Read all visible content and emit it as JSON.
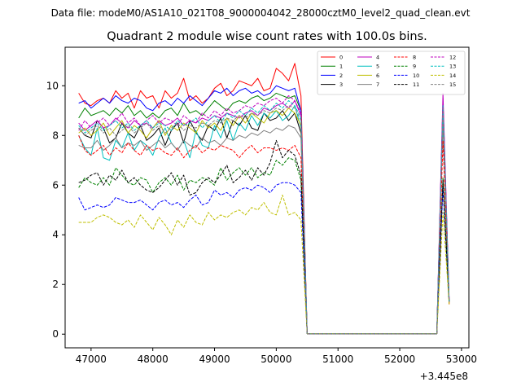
{
  "chart_data": {
    "type": "line",
    "suptitle": "Data file: modeM0/AS1A10_021T08_9000004042_28000cztM0_level2_quad_clean.evt",
    "title": "Quadrant 2 module wise count rates with 100.0s bins.",
    "xlabel": "",
    "ylabel": "",
    "x_offset_label": "+3.445e8",
    "xlim": [
      46580,
      53120
    ],
    "ylim": [
      -0.55,
      11.55
    ],
    "x_ticks": [
      47000,
      48000,
      49000,
      50000,
      51000,
      52000,
      53000
    ],
    "y_ticks": [
      0,
      2,
      4,
      6,
      8,
      10
    ],
    "x": [
      46800,
      46900,
      47000,
      47100,
      47200,
      47300,
      47400,
      47500,
      47600,
      47700,
      47800,
      47900,
      48000,
      48100,
      48200,
      48300,
      48400,
      48500,
      48600,
      48700,
      48800,
      48900,
      49000,
      49100,
      49200,
      49300,
      49400,
      49500,
      49600,
      49700,
      49800,
      49900,
      50000,
      50100,
      50200,
      50300,
      50400,
      50500,
      52600,
      52700,
      52800
    ],
    "series": [
      {
        "name": "0",
        "color": "#ff0000",
        "dash": "solid",
        "values": [
          9.7,
          9.3,
          9.2,
          9.4,
          9.5,
          9.3,
          9.8,
          9.5,
          9.7,
          9.1,
          9.8,
          9.5,
          9.6,
          9.1,
          9.8,
          9.5,
          9.7,
          10.3,
          9.4,
          9.6,
          9.3,
          9.5,
          9.9,
          10.1,
          9.6,
          9.8,
          10.2,
          10.1,
          10.0,
          10.3,
          9.8,
          9.9,
          10.7,
          10.5,
          10.2,
          10.9,
          9.6,
          0.02,
          0.02,
          9.3,
          1.2
        ]
      },
      {
        "name": "1",
        "color": "#008000",
        "dash": "solid",
        "values": [
          8.7,
          9.1,
          8.8,
          8.9,
          9.0,
          8.8,
          9.1,
          8.9,
          9.2,
          8.8,
          9.0,
          8.7,
          8.9,
          8.7,
          9.0,
          9.1,
          8.8,
          9.3,
          8.9,
          9.0,
          8.8,
          9.1,
          9.4,
          9.2,
          9.0,
          9.3,
          9.4,
          9.3,
          9.5,
          9.6,
          9.4,
          9.5,
          9.7,
          9.6,
          9.5,
          9.6,
          9.0,
          0.02,
          0.02,
          9.0,
          1.3
        ]
      },
      {
        "name": "2",
        "color": "#0000ff",
        "dash": "solid",
        "values": [
          9.3,
          9.4,
          9.1,
          9.3,
          9.5,
          9.3,
          9.6,
          9.4,
          9.3,
          9.5,
          9.4,
          9.1,
          9.0,
          9.3,
          9.4,
          9.2,
          9.5,
          9.3,
          9.6,
          9.4,
          9.2,
          9.5,
          9.8,
          9.7,
          9.9,
          9.6,
          9.8,
          9.9,
          9.7,
          9.8,
          9.6,
          9.7,
          10.0,
          9.9,
          9.8,
          9.9,
          9.0,
          0.02,
          0.02,
          9.4,
          1.3
        ]
      },
      {
        "name": "3",
        "color": "#000000",
        "dash": "solid",
        "values": [
          8.3,
          8.0,
          7.9,
          8.6,
          8.3,
          7.7,
          7.9,
          8.5,
          8.1,
          7.9,
          8.4,
          7.8,
          8.0,
          8.3,
          7.6,
          8.2,
          8.5,
          7.7,
          8.6,
          8.1,
          7.8,
          8.4,
          8.2,
          8.7,
          7.9,
          8.6,
          8.4,
          8.8,
          8.3,
          8.2,
          8.9,
          8.6,
          8.7,
          9.0,
          8.6,
          8.9,
          8.1,
          0.02,
          0.02,
          8.6,
          1.3
        ]
      },
      {
        "name": "4",
        "color": "#bf00bf",
        "dash": "solid",
        "values": [
          8.5,
          8.2,
          8.4,
          8.6,
          8.3,
          8.4,
          8.7,
          8.5,
          8.3,
          8.6,
          8.4,
          8.5,
          8.3,
          8.6,
          8.4,
          8.5,
          8.7,
          8.4,
          8.6,
          8.5,
          8.7,
          8.6,
          8.8,
          8.7,
          8.9,
          8.8,
          8.7,
          8.9,
          9.0,
          8.8,
          9.1,
          9.0,
          9.2,
          9.3,
          9.1,
          9.4,
          8.8,
          0.02,
          0.02,
          9.7,
          1.4
        ]
      },
      {
        "name": "5",
        "color": "#00bfbf",
        "dash": "solid",
        "values": [
          8.0,
          7.5,
          7.2,
          8.3,
          7.1,
          7.0,
          7.8,
          7.5,
          8.1,
          7.4,
          7.8,
          7.6,
          7.2,
          7.9,
          8.3,
          7.7,
          7.4,
          7.8,
          7.1,
          8.2,
          7.6,
          7.5,
          8.4,
          7.9,
          8.6,
          7.8,
          8.5,
          8.2,
          8.8,
          8.4,
          8.9,
          8.7,
          9.0,
          8.6,
          8.8,
          9.2,
          8.3,
          0.02,
          0.02,
          8.8,
          1.3
        ]
      },
      {
        "name": "6",
        "color": "#bfbf00",
        "dash": "solid",
        "values": [
          8.1,
          8.3,
          8.0,
          8.2,
          8.5,
          8.0,
          8.3,
          8.6,
          8.1,
          8.4,
          8.2,
          7.9,
          8.3,
          8.6,
          8.0,
          8.4,
          8.2,
          8.5,
          8.3,
          8.1,
          8.6,
          8.3,
          8.5,
          8.2,
          8.7,
          8.4,
          8.8,
          8.5,
          8.9,
          8.7,
          8.5,
          8.9,
          9.0,
          8.8,
          9.1,
          8.9,
          8.4,
          0.02,
          0.02,
          8.7,
          1.3
        ]
      },
      {
        "name": "7",
        "color": "#808080",
        "dash": "solid",
        "values": [
          7.6,
          7.5,
          7.5,
          7.8,
          7.4,
          7.6,
          7.9,
          7.5,
          7.7,
          7.6,
          7.8,
          7.4,
          7.6,
          7.8,
          7.5,
          7.7,
          7.4,
          7.8,
          7.6,
          7.5,
          7.9,
          7.7,
          7.8,
          7.6,
          7.9,
          7.8,
          8.0,
          7.9,
          8.1,
          8.0,
          8.2,
          8.1,
          8.3,
          8.2,
          8.4,
          8.3,
          7.9,
          0.02,
          0.02,
          8.5,
          1.3
        ]
      },
      {
        "name": "8",
        "color": "#ff0000",
        "dash": "dashed",
        "values": [
          8.0,
          7.4,
          7.2,
          7.4,
          7.6,
          7.2,
          7.5,
          7.3,
          7.7,
          7.4,
          7.2,
          7.6,
          7.4,
          7.5,
          7.3,
          7.2,
          7.5,
          7.1,
          7.4,
          7.6,
          7.3,
          7.5,
          7.4,
          7.6,
          7.5,
          7.4,
          7.1,
          7.4,
          7.6,
          7.3,
          7.5,
          7.5,
          7.4,
          7.5,
          7.4,
          7.6,
          7.1,
          0.02,
          0.02,
          7.8,
          1.2
        ]
      },
      {
        "name": "9",
        "color": "#008000",
        "dash": "dashed",
        "values": [
          5.9,
          6.3,
          6.1,
          6.0,
          6.3,
          6.0,
          6.7,
          6.4,
          6.1,
          6.0,
          6.3,
          6.2,
          5.7,
          6.1,
          6.3,
          6.0,
          6.4,
          5.8,
          6.2,
          6.1,
          6.3,
          6.2,
          6.0,
          6.7,
          6.2,
          6.5,
          6.7,
          6.4,
          6.7,
          6.3,
          6.5,
          6.4,
          7.0,
          6.8,
          7.1,
          7.0,
          6.2,
          0.02,
          0.02,
          6.3,
          1.3
        ]
      },
      {
        "name": "10",
        "color": "#0000ff",
        "dash": "dashed",
        "values": [
          5.5,
          5.0,
          5.1,
          5.2,
          5.1,
          5.2,
          5.5,
          5.4,
          5.3,
          5.3,
          5.4,
          5.2,
          5.0,
          5.3,
          5.4,
          5.2,
          5.3,
          5.1,
          5.4,
          5.6,
          5.2,
          5.3,
          5.8,
          5.6,
          5.7,
          5.5,
          5.8,
          5.9,
          5.8,
          6.0,
          5.9,
          5.7,
          6.0,
          6.1,
          6.1,
          6.0,
          5.7,
          0.02,
          0.02,
          5.9,
          1.3
        ]
      },
      {
        "name": "11",
        "color": "#000000",
        "dash": "dashed",
        "values": [
          6.1,
          6.2,
          6.4,
          6.5,
          6.0,
          6.4,
          6.2,
          6.6,
          6.1,
          6.3,
          6.0,
          5.8,
          5.7,
          5.9,
          6.2,
          6.5,
          6.0,
          6.4,
          5.6,
          5.7,
          6.1,
          6.3,
          6.1,
          6.4,
          6.8,
          6.1,
          6.3,
          6.6,
          6.2,
          6.7,
          6.4,
          6.9,
          7.8,
          7.1,
          7.4,
          7.2,
          6.4,
          0.02,
          0.02,
          6.2,
          1.3
        ]
      },
      {
        "name": "12",
        "color": "#bf00bf",
        "dash": "dashed",
        "values": [
          8.2,
          8.6,
          8.3,
          8.5,
          8.7,
          8.4,
          8.6,
          8.9,
          8.5,
          8.7,
          8.4,
          8.6,
          8.8,
          8.5,
          8.7,
          8.6,
          8.4,
          8.8,
          8.6,
          8.5,
          8.9,
          8.7,
          9.0,
          8.8,
          9.1,
          8.9,
          9.0,
          9.2,
          9.1,
          9.3,
          9.2,
          9.4,
          9.5,
          9.3,
          9.6,
          9.4,
          8.9,
          0.02,
          0.02,
          9.5,
          1.4
        ]
      },
      {
        "name": "13",
        "color": "#00bfbf",
        "dash": "dashed",
        "values": [
          8.4,
          8.1,
          8.3,
          8.5,
          8.2,
          8.4,
          8.6,
          8.3,
          8.5,
          8.2,
          8.4,
          8.6,
          8.3,
          8.5,
          8.4,
          8.2,
          8.6,
          8.4,
          8.5,
          8.7,
          8.3,
          8.6,
          8.8,
          8.5,
          8.9,
          8.7,
          9.0,
          8.8,
          9.1,
          8.9,
          9.2,
          9.0,
          9.3,
          9.1,
          9.4,
          9.2,
          8.7,
          0.02,
          0.02,
          9.2,
          1.3
        ]
      },
      {
        "name": "14",
        "color": "#bfbf00",
        "dash": "dashed",
        "values": [
          4.5,
          4.5,
          4.5,
          4.7,
          4.8,
          4.7,
          4.5,
          4.4,
          4.6,
          4.3,
          4.8,
          4.5,
          4.2,
          4.7,
          4.4,
          4.0,
          4.6,
          4.3,
          4.8,
          4.5,
          4.4,
          4.9,
          4.6,
          4.8,
          4.7,
          4.9,
          5.0,
          4.8,
          5.1,
          5.0,
          5.3,
          4.9,
          4.8,
          5.6,
          4.8,
          4.9,
          4.6,
          0.02,
          0.02,
          4.9,
          1.2
        ]
      },
      {
        "name": "15",
        "color": "#808080",
        "dash": "dashed",
        "values": [
          8.3,
          8.0,
          8.2,
          8.4,
          8.1,
          8.3,
          8.0,
          8.2,
          8.4,
          8.1,
          8.3,
          8.5,
          8.2,
          8.4,
          8.1,
          8.3,
          8.5,
          8.2,
          8.4,
          8.3,
          8.5,
          8.4,
          8.6,
          8.5,
          8.7,
          8.6,
          8.8,
          8.7,
          8.9,
          8.8,
          9.0,
          8.9,
          9.1,
          9.0,
          9.2,
          9.1,
          8.6,
          0.02,
          0.02,
          9.1,
          1.3
        ]
      }
    ],
    "legend": {
      "placement": "top-right",
      "columns": 4
    }
  }
}
